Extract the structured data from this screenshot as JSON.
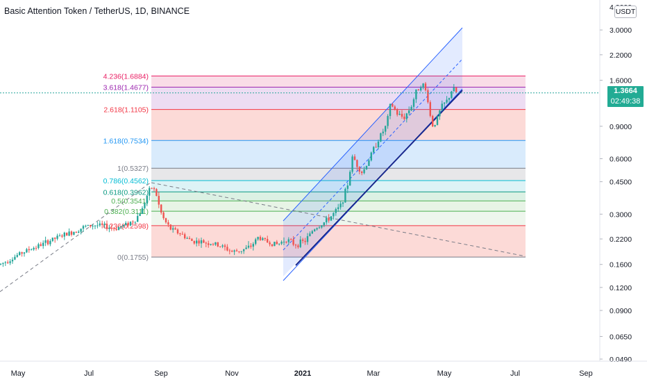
{
  "title": "Basic Attention Token / TetherUS, 1D, BINANCE",
  "currency": "USDT",
  "current_price": {
    "value": "1.3664",
    "countdown": "02:49:38",
    "level": 1.3664
  },
  "colors": {
    "up": "#26a69a",
    "down": "#ef5350",
    "tag": "#22ab94",
    "channel": "#2962ff",
    "dashed": "#787b86"
  },
  "chart_data": {
    "type": "candlestick",
    "scale": "log",
    "x_labels": [
      "May",
      "Jul",
      "Sep",
      "Nov",
      "2021",
      "Mar",
      "May",
      "Jul",
      "Sep"
    ],
    "y_ticks": [
      "4.0000",
      "3.0000",
      "2.2000",
      "1.6000",
      "0.9000",
      "0.6000",
      "0.4500",
      "0.3000",
      "0.2200",
      "0.1600",
      "0.1200",
      "0.0900",
      "0.0650",
      "0.0490"
    ],
    "y_tick_values": [
      4.0,
      3.0,
      2.2,
      1.6,
      0.9,
      0.6,
      0.45,
      0.3,
      0.22,
      0.16,
      0.12,
      0.09,
      0.065,
      0.049
    ],
    "fib_levels": [
      {
        "label": "4.236(1.6884)",
        "value": 1.6884,
        "color": "#e91e63",
        "fill": "#f8d6e3"
      },
      {
        "label": "3.618(1.4677)",
        "value": 1.4677,
        "color": "#9c27b0",
        "fill": "#ead7f1"
      },
      {
        "label": "2.618(1.1105)",
        "value": 1.1105,
        "color": "#f23645",
        "fill": "#fbd4d0"
      },
      {
        "label": "1.618(0.7534)",
        "value": 0.7534,
        "color": "#2196f3",
        "fill": "#d2e8fb"
      },
      {
        "label": "1(0.5327)",
        "value": 0.5327,
        "color": "#787b86",
        "fill": "#e3e3e5"
      },
      {
        "label": "0.786(0.4562)",
        "value": 0.4562,
        "color": "#00bcd4",
        "fill": "#d7f1f4"
      },
      {
        "label": "0.618(0.3962)",
        "value": 0.3962,
        "color": "#089981",
        "fill": "#d6eedf"
      },
      {
        "label": "0.5(0.3541)",
        "value": 0.3541,
        "color": "#4caf50",
        "fill": "#e3f2e2"
      },
      {
        "label": "0.382(0.3111)",
        "value": 0.3111,
        "color": "#4caf50",
        "fill": "#ebf5ea"
      },
      {
        "label": "0.236(0.2598)",
        "value": 0.2598,
        "color": "#f23645",
        "fill": "#fbd4d0"
      },
      {
        "label": "0(0.1755)",
        "value": 0.1755,
        "color": "#787b86",
        "fill": null
      }
    ],
    "price_path": [
      [
        0,
        0.16
      ],
      [
        14,
        0.17
      ],
      [
        30,
        0.184
      ],
      [
        45,
        0.195
      ],
      [
        60,
        0.205
      ],
      [
        75,
        0.218
      ],
      [
        90,
        0.23
      ],
      [
        105,
        0.24
      ],
      [
        120,
        0.255
      ],
      [
        135,
        0.262
      ],
      [
        150,
        0.258
      ],
      [
        165,
        0.25
      ],
      [
        180,
        0.262
      ],
      [
        195,
        0.28
      ],
      [
        205,
        0.32
      ],
      [
        212,
        0.38
      ],
      [
        218,
        0.42
      ],
      [
        224,
        0.4
      ],
      [
        230,
        0.32
      ],
      [
        236,
        0.28
      ],
      [
        245,
        0.25
      ],
      [
        260,
        0.235
      ],
      [
        275,
        0.215
      ],
      [
        290,
        0.212
      ],
      [
        305,
        0.208
      ],
      [
        320,
        0.2
      ],
      [
        335,
        0.187
      ],
      [
        345,
        0.19
      ],
      [
        360,
        0.198
      ],
      [
        372,
        0.225
      ],
      [
        385,
        0.212
      ],
      [
        400,
        0.205
      ],
      [
        412,
        0.22
      ],
      [
        425,
        0.205
      ],
      [
        440,
        0.215
      ],
      [
        452,
        0.25
      ],
      [
        462,
        0.262
      ],
      [
        472,
        0.28
      ],
      [
        480,
        0.3
      ],
      [
        490,
        0.33
      ],
      [
        500,
        0.42
      ],
      [
        508,
        0.62
      ],
      [
        515,
        0.55
      ],
      [
        522,
        0.5
      ],
      [
        530,
        0.58
      ],
      [
        540,
        0.7
      ],
      [
        548,
        0.8
      ],
      [
        556,
        0.9
      ],
      [
        563,
        1.2
      ],
      [
        572,
        1.05
      ],
      [
        582,
        1.0
      ],
      [
        592,
        1.15
      ],
      [
        600,
        1.4
      ],
      [
        608,
        1.55
      ],
      [
        615,
        1.35
      ],
      [
        622,
        0.9
      ],
      [
        628,
        0.95
      ],
      [
        636,
        1.15
      ],
      [
        645,
        1.25
      ],
      [
        652,
        1.45
      ],
      [
        658,
        1.366
      ]
    ]
  }
}
